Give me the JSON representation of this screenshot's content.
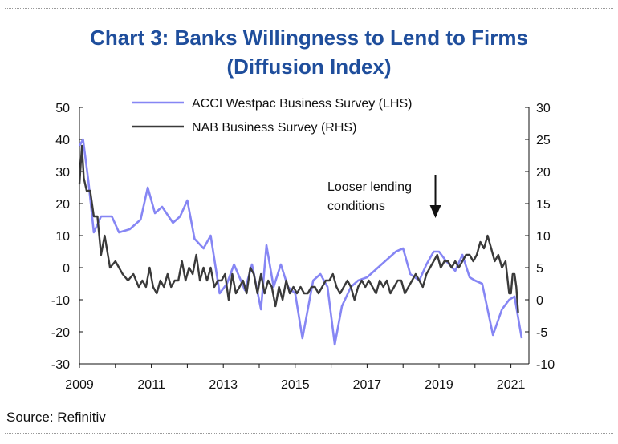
{
  "title_line1": "Chart 3: Banks Willingness to Lend to Firms",
  "title_line2": "(Diffusion Index)",
  "source": "Source: Refinitiv",
  "colors": {
    "acci": "#8686f4",
    "nab": "#3a3a3a",
    "title": "#1f4e9c"
  },
  "chart_data": {
    "type": "line",
    "x_range": [
      2009,
      2021.5
    ],
    "x_ticks": [
      "2009",
      "2011",
      "2013",
      "2015",
      "2017",
      "2019",
      "2021"
    ],
    "y_left": {
      "range": [
        -30,
        50
      ],
      "ticks": [
        "50",
        "40",
        "30",
        "20",
        "10",
        "0",
        "-10",
        "-20",
        "-30"
      ]
    },
    "y_right": {
      "range": [
        -10,
        30
      ],
      "ticks": [
        "30",
        "25",
        "20",
        "15",
        "10",
        "5",
        "0",
        "-5",
        "-10"
      ]
    },
    "legend": [
      "ACCI Westpac Business Survey (LHS)",
      "NAB Business Survey (RHS)"
    ],
    "annotation": {
      "lines": [
        "Looser lending",
        "conditions"
      ],
      "x": 2018.9
    },
    "series": [
      {
        "name": "ACCI Westpac Business Survey (LHS)",
        "axis": "left",
        "x": [
          2009.0,
          2009.1,
          2009.25,
          2009.4,
          2009.6,
          2009.9,
          2010.1,
          2010.4,
          2010.7,
          2010.9,
          2011.1,
          2011.3,
          2011.6,
          2011.8,
          2012.0,
          2012.2,
          2012.45,
          2012.65,
          2012.9,
          2013.1,
          2013.3,
          2013.45,
          2013.6,
          2013.8,
          2014.05,
          2014.2,
          2014.4,
          2014.6,
          2014.8,
          2015.0,
          2015.2,
          2015.5,
          2015.7,
          2015.9,
          2016.1,
          2016.3,
          2016.55,
          2016.75,
          2017.0,
          2017.2,
          2017.4,
          2017.6,
          2017.8,
          2018.0,
          2018.2,
          2018.45,
          2018.65,
          2018.85,
          2019.0,
          2019.2,
          2019.45,
          2019.65,
          2019.85,
          2020.0,
          2020.2,
          2020.5,
          2020.75,
          2020.95,
          2021.1,
          2021.3
        ],
        "values": [
          38,
          40,
          27,
          11,
          16,
          16,
          11,
          12,
          15,
          25,
          17,
          19,
          14,
          16,
          21,
          9,
          6,
          10,
          -8,
          -5,
          1,
          -3,
          -7,
          1,
          -13,
          7,
          -6,
          1,
          -6,
          -8,
          -22,
          -4,
          -2,
          -6,
          -24,
          -12,
          -6,
          -4,
          -3,
          -1,
          1,
          3,
          5,
          6,
          -2,
          -4,
          1,
          5,
          5,
          2,
          -1,
          4,
          -3,
          -4,
          -5,
          -21,
          -13,
          -10,
          -9,
          -22
        ]
      },
      {
        "name": "NAB Business Survey (RHS)",
        "axis": "right",
        "x": [
          2009.0,
          2009.07,
          2009.12,
          2009.2,
          2009.3,
          2009.4,
          2009.5,
          2009.6,
          2009.7,
          2009.85,
          2010.0,
          2010.1,
          2010.2,
          2010.35,
          2010.5,
          2010.65,
          2010.75,
          2010.85,
          2010.95,
          2011.05,
          2011.15,
          2011.25,
          2011.35,
          2011.45,
          2011.55,
          2011.65,
          2011.75,
          2011.85,
          2011.95,
          2012.05,
          2012.15,
          2012.25,
          2012.35,
          2012.45,
          2012.55,
          2012.65,
          2012.75,
          2012.85,
          2012.95,
          2013.05,
          2013.15,
          2013.25,
          2013.35,
          2013.45,
          2013.55,
          2013.65,
          2013.75,
          2013.85,
          2013.95,
          2014.05,
          2014.15,
          2014.25,
          2014.35,
          2014.45,
          2014.55,
          2014.65,
          2014.75,
          2014.85,
          2014.95,
          2015.05,
          2015.15,
          2015.25,
          2015.35,
          2015.45,
          2015.55,
          2015.65,
          2015.75,
          2015.85,
          2015.95,
          2016.05,
          2016.15,
          2016.25,
          2016.35,
          2016.45,
          2016.55,
          2016.65,
          2016.75,
          2016.85,
          2016.95,
          2017.05,
          2017.15,
          2017.25,
          2017.35,
          2017.45,
          2017.55,
          2017.65,
          2017.75,
          2017.85,
          2017.95,
          2018.05,
          2018.15,
          2018.25,
          2018.35,
          2018.45,
          2018.55,
          2018.65,
          2018.75,
          2018.85,
          2018.95,
          2019.05,
          2019.15,
          2019.25,
          2019.35,
          2019.45,
          2019.55,
          2019.65,
          2019.75,
          2019.85,
          2019.95,
          2020.05,
          2020.15,
          2020.25,
          2020.35,
          2020.45,
          2020.55,
          2020.65,
          2020.75,
          2020.85,
          2020.95,
          2021.0,
          2021.05,
          2021.1,
          2021.15,
          2021.2
        ],
        "values": [
          18,
          24,
          19,
          17,
          17,
          13,
          13,
          7,
          10,
          5,
          6,
          5,
          4,
          3,
          4,
          2,
          3,
          2,
          5,
          2,
          1,
          3,
          2,
          4,
          2,
          3,
          3,
          6,
          3,
          5,
          4,
          7,
          3,
          5,
          3,
          5,
          2,
          3,
          3,
          4,
          0,
          4,
          1,
          2,
          3,
          1,
          5,
          4,
          1,
          4,
          1,
          3,
          2,
          -1,
          2,
          0,
          3,
          1,
          2,
          1,
          2,
          1,
          1,
          2,
          2,
          1,
          2,
          3,
          3,
          4,
          2,
          1,
          2,
          3,
          2,
          0,
          2,
          3,
          2,
          3,
          2,
          1,
          3,
          2,
          3,
          1,
          2,
          3,
          3,
          1,
          2,
          3,
          4,
          3,
          2,
          4,
          5,
          6,
          7,
          5,
          6,
          6,
          5,
          6,
          5,
          6,
          7,
          7,
          6,
          7,
          9,
          8,
          10,
          8,
          6,
          7,
          5,
          6,
          1,
          1,
          4,
          4,
          2,
          -2
        ]
      }
    ]
  }
}
